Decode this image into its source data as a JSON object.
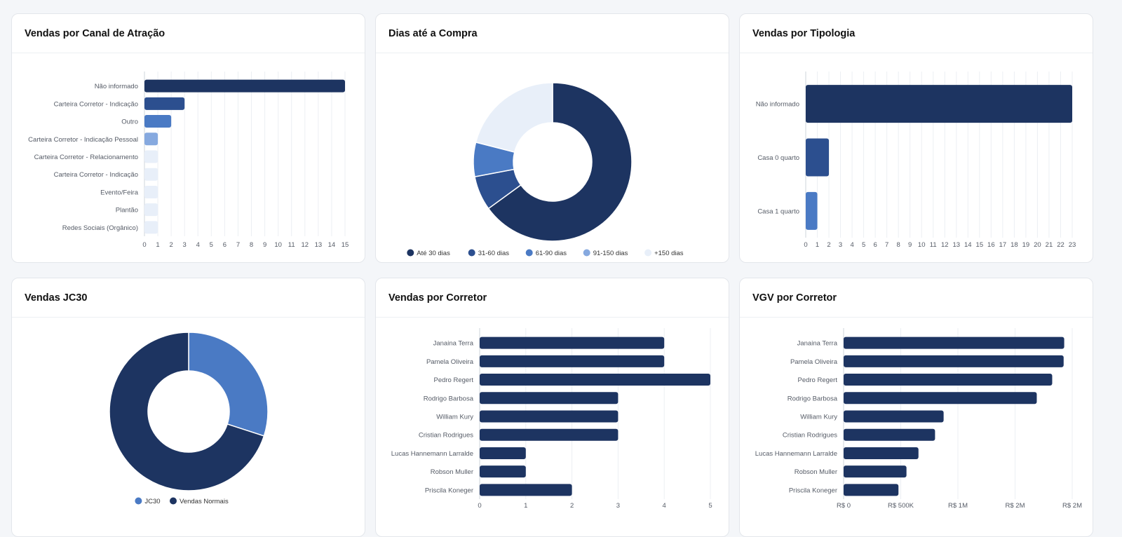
{
  "colors": {
    "navy": "#1d3461",
    "mid": "#2c4f8f",
    "blue": "#4a7ac4",
    "light": "#86a9df",
    "pale": "#e8eff9",
    "grid": "#eceff3",
    "label": "#555b66"
  },
  "cards": {
    "canal": {
      "title": "Vendas por Canal de Atração"
    },
    "dias": {
      "title": "Dias até a Compra"
    },
    "tipologia": {
      "title": "Vendas por Tipologia"
    },
    "jc30": {
      "title": "Vendas JC30"
    },
    "corretor": {
      "title": "Vendas por Corretor"
    },
    "vgv": {
      "title": "VGV por Corretor"
    }
  },
  "chart_data": [
    {
      "id": "canal",
      "type": "bar",
      "orientation": "horizontal",
      "title": "Vendas por Canal de Atração",
      "categories": [
        "Não informado",
        "Carteira Corretor - Indicação",
        "Outro",
        "Carteira Corretor - Indicação Pessoal",
        "Carteira Corretor - Relacionamento",
        "Carteira Corretor - Indicação",
        "Evento/Feira",
        "Plantão",
        "Redes Sociais (Orgânico)"
      ],
      "values": [
        15,
        3,
        2,
        1,
        1,
        1,
        1,
        1,
        1
      ],
      "colors": [
        "#1d3461",
        "#2c4f8f",
        "#4a7ac4",
        "#86a9df",
        "#e8eff9",
        "#e8eff9",
        "#e8eff9",
        "#e8eff9",
        "#e8eff9"
      ],
      "xticks": [
        "0",
        "1",
        "2",
        "3",
        "4",
        "5",
        "6",
        "7",
        "8",
        "9",
        "10",
        "11",
        "12",
        "13",
        "14",
        "15"
      ],
      "xlim": [
        0,
        15
      ],
      "grid": true
    },
    {
      "id": "dias",
      "type": "pie",
      "donut": true,
      "title": "Dias até a Compra",
      "labels": [
        "Até 30 dias",
        "31-60 dias",
        "61-90 dias",
        "91-150 dias",
        "+150 dias"
      ],
      "values": [
        65,
        7,
        7,
        0,
        21
      ],
      "colors": [
        "#1d3461",
        "#2c4f8f",
        "#4a7ac4",
        "#86a9df",
        "#e8eff9"
      ],
      "legend": "bottom"
    },
    {
      "id": "tipologia",
      "type": "bar",
      "orientation": "horizontal",
      "title": "Vendas por Tipologia",
      "categories": [
        "Não informado",
        "Casa 0 quarto",
        "Casa 1 quarto"
      ],
      "values": [
        23,
        2,
        1
      ],
      "colors": [
        "#1d3461",
        "#2c4f8f",
        "#4a7ac4"
      ],
      "xticks": [
        "0",
        "1",
        "2",
        "3",
        "4",
        "5",
        "6",
        "7",
        "8",
        "9",
        "10",
        "11",
        "12",
        "13",
        "14",
        "15",
        "16",
        "17",
        "18",
        "19",
        "20",
        "21",
        "22",
        "23"
      ],
      "xlim": [
        0,
        23
      ],
      "grid": true
    },
    {
      "id": "jc30",
      "type": "pie",
      "donut": true,
      "title": "Vendas JC30",
      "labels": [
        "JC30",
        "Vendas Normais"
      ],
      "values": [
        30,
        70
      ],
      "colors": [
        "#4a7ac4",
        "#1d3461"
      ],
      "legend": "bottom"
    },
    {
      "id": "corretor",
      "type": "bar",
      "orientation": "horizontal",
      "title": "Vendas por Corretor",
      "categories": [
        "Janaina Terra",
        "Pamela Oliveira",
        "Pedro Regert",
        "Rodrigo Barbosa",
        "William Kury",
        "Cristian Rodrigues",
        "Lucas Hannemann Larralde",
        "Robson Muller",
        "Priscila Koneger"
      ],
      "values": [
        4,
        4,
        5,
        3,
        3,
        3,
        1,
        1,
        2
      ],
      "colors": [
        "#1d3461"
      ],
      "xticks": [
        "0",
        "1",
        "2",
        "3",
        "4",
        "5"
      ],
      "xlim": [
        0,
        5
      ],
      "grid": true
    },
    {
      "id": "vgv",
      "type": "bar",
      "orientation": "horizontal",
      "title": "VGV por Corretor",
      "categories": [
        "Janaina Terra",
        "Pamela Oliveira",
        "Pedro Regert",
        "Rodrigo Barbosa",
        "William Kury",
        "Cristian Rodrigues",
        "Lucas Hannemann Larralde",
        "Robson Muller",
        "Priscila Koneger"
      ],
      "values": [
        1930000,
        1925000,
        1825000,
        1690000,
        875000,
        800000,
        655000,
        550000,
        480000
      ],
      "colors": [
        "#1d3461"
      ],
      "xticks": [
        "R$ 0",
        "R$ 500K",
        "R$ 1M",
        "R$ 2M",
        "R$ 2M"
      ],
      "xtick_values": [
        0,
        500000,
        1000000,
        1500000,
        2000000
      ],
      "xlim": [
        0,
        2000000
      ],
      "grid": true
    }
  ]
}
